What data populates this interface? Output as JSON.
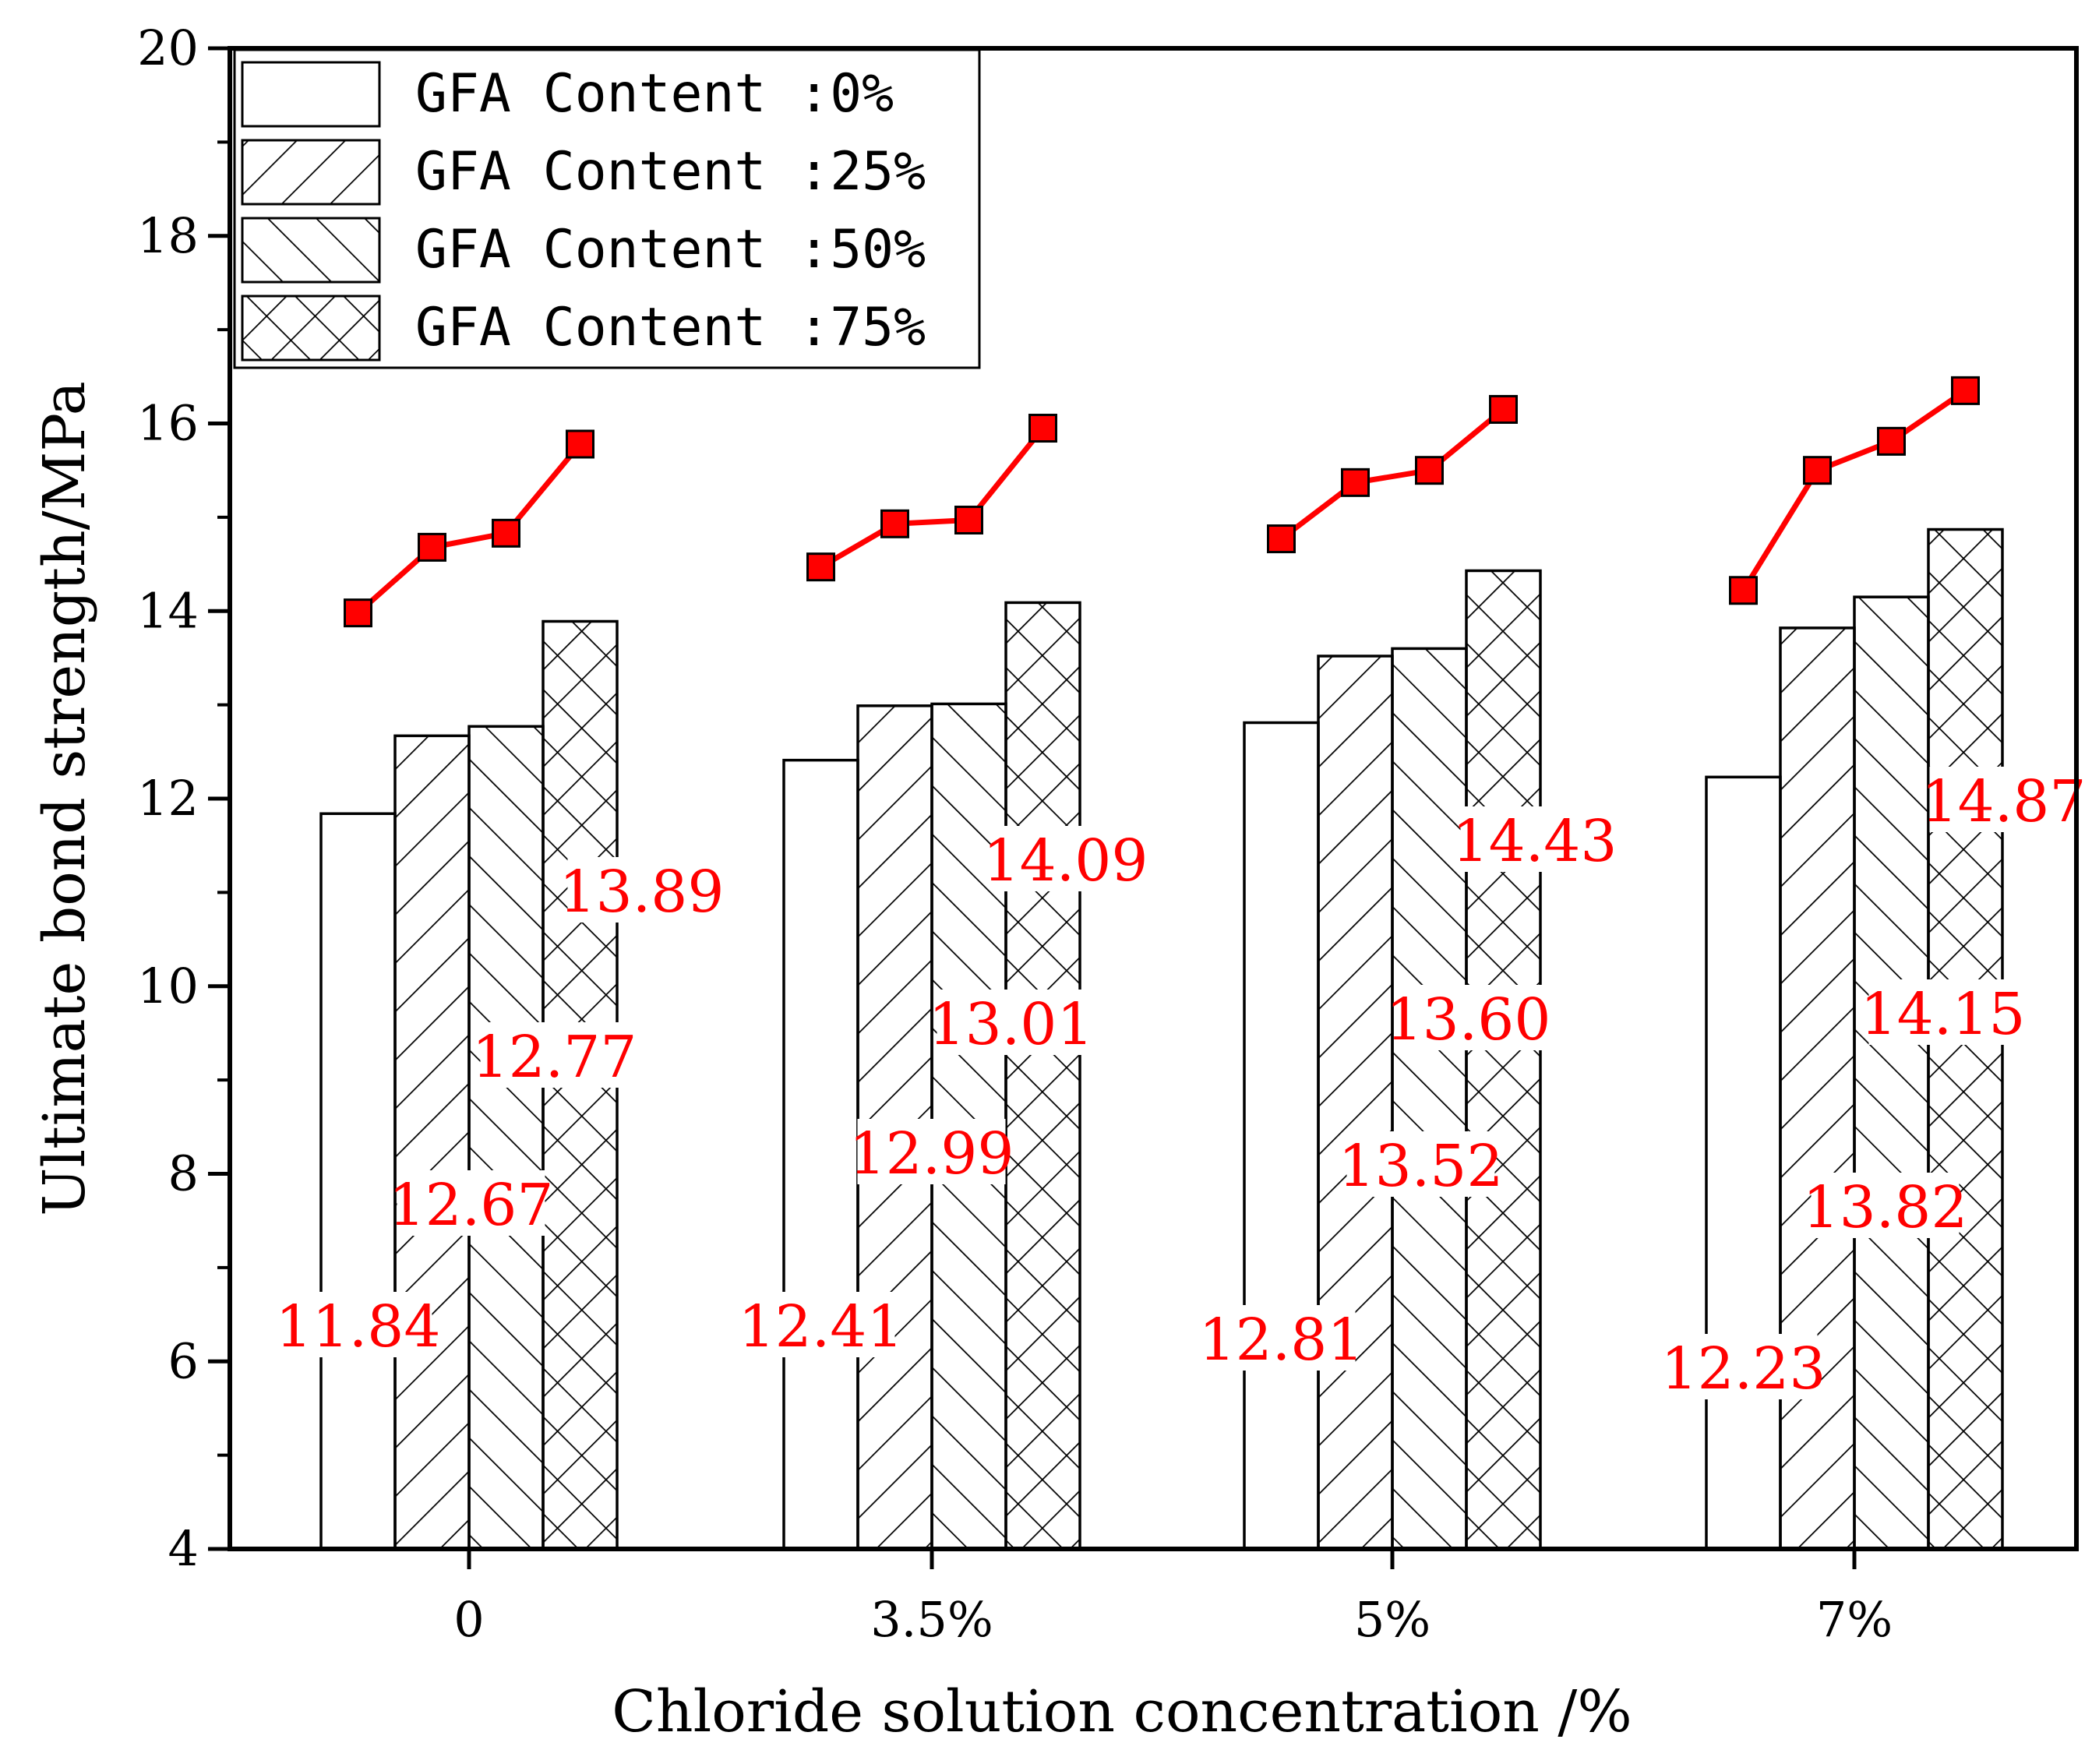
{
  "chart_data": {
    "type": "bar",
    "title": "",
    "xlabel": "Chloride solution concentration /%",
    "ylabel": "Ultimate bond strength/MPa",
    "categories": [
      "0",
      "3.5%",
      "5%",
      "7%"
    ],
    "ylim": [
      4,
      20
    ],
    "yticks": [
      4,
      6,
      8,
      10,
      12,
      14,
      16,
      18,
      20
    ],
    "grid": false,
    "legend_position": "top-left",
    "series": [
      {
        "name": "GFA Content :0%",
        "pattern": "none",
        "values": [
          11.84,
          12.41,
          12.81,
          12.23
        ],
        "labels": [
          "11.84",
          "12.41",
          "12.81",
          "12.23"
        ]
      },
      {
        "name": "GFA Content :25%",
        "pattern": "forward",
        "values": [
          12.67,
          12.99,
          13.52,
          13.82
        ],
        "labels": [
          "12.67",
          "12.99",
          "13.52",
          "13.82"
        ]
      },
      {
        "name": "GFA Content :50%",
        "pattern": "backward",
        "values": [
          12.77,
          13.01,
          13.6,
          14.15
        ],
        "labels": [
          "12.77",
          "13.01",
          "13.60",
          "14.15"
        ]
      },
      {
        "name": "GFA Content :75%",
        "pattern": "crosshatch",
        "values": [
          13.89,
          14.09,
          14.43,
          14.87
        ],
        "labels": [
          "13.89",
          "14.09",
          "14.43",
          "14.87"
        ]
      }
    ],
    "line_series": {
      "marker": "square",
      "values": [
        [
          13.98,
          14.68,
          14.83,
          15.78
        ],
        [
          14.47,
          14.93,
          14.97,
          15.95
        ],
        [
          14.77,
          15.37,
          15.5,
          16.15
        ],
        [
          14.22,
          15.5,
          15.81,
          16.35
        ]
      ]
    },
    "colors": {
      "bar_stroke": "#000000",
      "bar_fill": "#ffffff",
      "line": "#ff0000",
      "label": "#ff0000"
    }
  }
}
